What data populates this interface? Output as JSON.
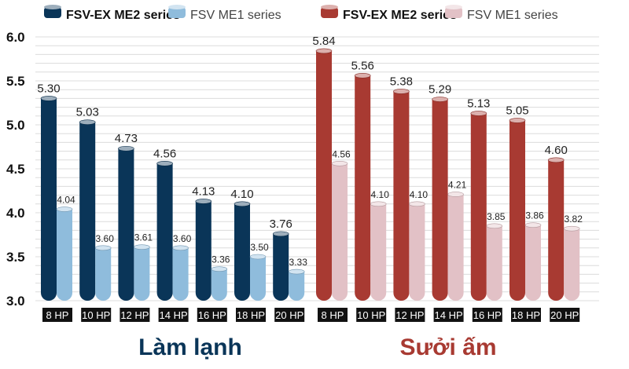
{
  "chart_data": [
    {
      "type": "bar",
      "title": "Làm lạnh",
      "categories": [
        "8 HP",
        "10 HP",
        "12 HP",
        "14 HP",
        "16 HP",
        "18 HP",
        "20 HP"
      ],
      "series": [
        {
          "name": "FSV-EX ME2 series",
          "values": [
            5.3,
            5.03,
            4.73,
            4.56,
            4.13,
            4.1,
            3.76
          ],
          "color": "#0a3558"
        },
        {
          "name": "FSV ME1 series",
          "values": [
            4.04,
            3.6,
            3.61,
            3.6,
            3.36,
            3.5,
            3.33
          ],
          "color": "#8fbcdc"
        }
      ],
      "ylim": [
        3.0,
        6.0
      ],
      "yticks": [
        "3.0",
        "3.5",
        "4.0",
        "4.5",
        "5.0",
        "5.5",
        "6.0"
      ],
      "grid": true,
      "legend": "top-left",
      "title_color": "#0a3558"
    },
    {
      "type": "bar",
      "title": "Sưởi ấm",
      "categories": [
        "8 HP",
        "10 HP",
        "12 HP",
        "14 HP",
        "16 HP",
        "18 HP",
        "20 HP"
      ],
      "series": [
        {
          "name": "FSV-EX ME2 series",
          "values": [
            5.84,
            5.56,
            5.38,
            5.29,
            5.13,
            5.05,
            4.6
          ],
          "color": "#a83a32"
        },
        {
          "name": "FSV ME1 series",
          "values": [
            4.56,
            4.1,
            4.1,
            4.21,
            3.85,
            3.86,
            3.82
          ],
          "color": "#e2c1c6"
        }
      ],
      "ylim": [
        3.0,
        6.0
      ],
      "grid": true,
      "legend": "top-right",
      "title_color": "#a83a32"
    }
  ]
}
